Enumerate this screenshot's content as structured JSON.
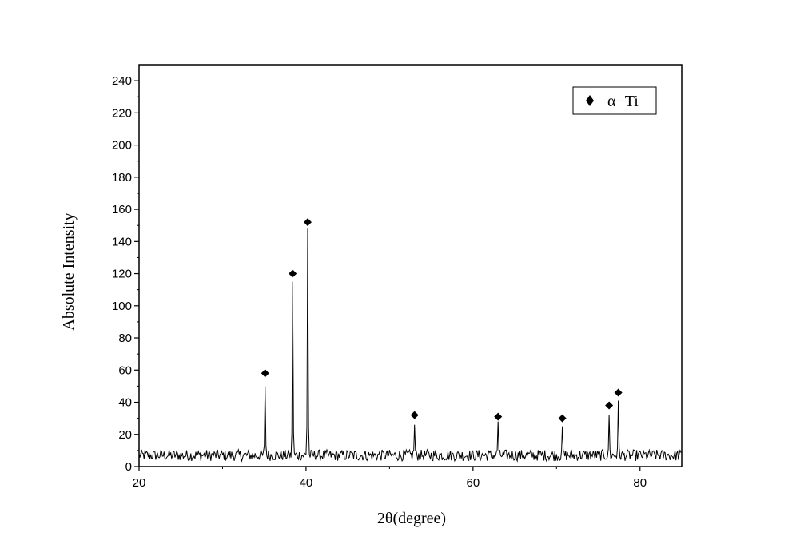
{
  "chart_data": {
    "type": "line",
    "xlabel": "2θ(degree)",
    "ylabel": "Absolute Intensity",
    "xlim": [
      20,
      85
    ],
    "ylim": [
      0,
      250
    ],
    "xticks": [
      20,
      40,
      60,
      80
    ],
    "yticks": [
      0,
      20,
      40,
      60,
      80,
      100,
      120,
      140,
      160,
      180,
      200,
      220,
      240
    ],
    "grid": false,
    "legend_position": "top-right",
    "series": [
      {
        "name": "α−Ti",
        "marker": "diamond",
        "line_color": "#000000",
        "baseline_mean": 7,
        "baseline_noise": 3.5,
        "x_step": 0.1,
        "peaks": [
          {
            "x": 35.1,
            "y": 50
          },
          {
            "x": 38.4,
            "y": 115
          },
          {
            "x": 40.2,
            "y": 148
          },
          {
            "x": 53.0,
            "y": 26
          },
          {
            "x": 63.0,
            "y": 28
          },
          {
            "x": 70.7,
            "y": 25
          },
          {
            "x": 76.3,
            "y": 32
          },
          {
            "x": 77.4,
            "y": 41
          }
        ],
        "markers": [
          {
            "x": 35.1,
            "y": 58
          },
          {
            "x": 38.4,
            "y": 120
          },
          {
            "x": 40.2,
            "y": 152
          },
          {
            "x": 53.0,
            "y": 32
          },
          {
            "x": 63.0,
            "y": 31
          },
          {
            "x": 70.7,
            "y": 30
          },
          {
            "x": 76.3,
            "y": 38
          },
          {
            "x": 77.4,
            "y": 46
          }
        ]
      }
    ]
  }
}
